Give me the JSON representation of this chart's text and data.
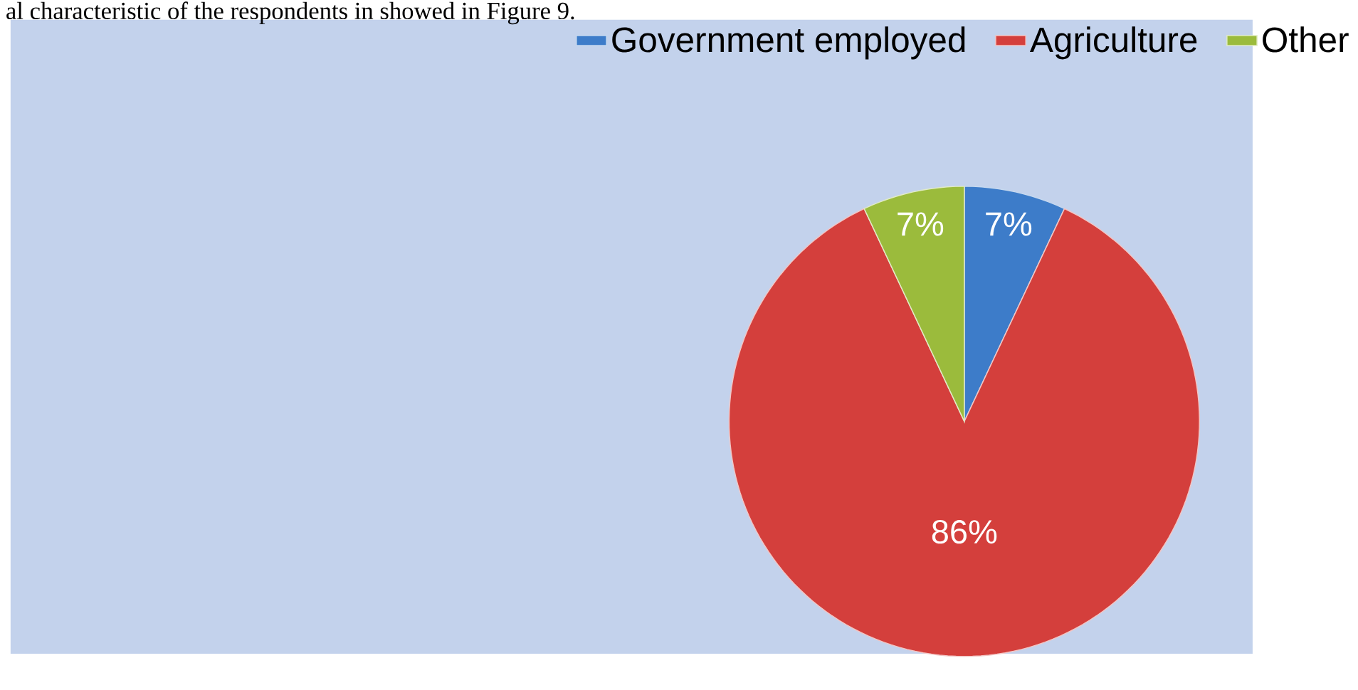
{
  "chart_data": {
    "type": "pie",
    "categories": [
      "Government employed",
      "Agriculture",
      "Other"
    ],
    "values": [
      7,
      86,
      7
    ],
    "colors": [
      "#3d7cc9",
      "#d43f3c",
      "#9bbb3c"
    ],
    "value_labels": [
      "7%",
      "86%",
      "7%"
    ],
    "legend": "top",
    "annotations": [
      "al characteristic of the respondents in showed in Figure 9."
    ]
  }
}
